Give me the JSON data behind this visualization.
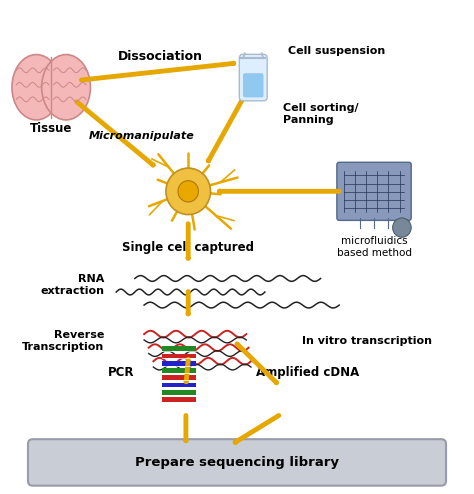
{
  "background_color": "#ffffff",
  "arrow_color": "#E6A800",
  "arrow_lw": 3.5,
  "figsize": [
    4.74,
    4.94
  ],
  "dpi": 100,
  "labels": {
    "tissue": "Tissue",
    "dissociation": "Dissociation",
    "cell_suspension": "Cell suspension",
    "cell_sorting": "Cell sorting/\nPanning",
    "micromanipulate": "Micromanipulate",
    "single_cell": "Single cell captured",
    "microfluidics": "microfluidics\nbased method",
    "rna_extraction": "RNA\nextraction",
    "reverse_transcription": "Reverse\nTranscription",
    "pcr": "PCR",
    "in_vitro": "In vitro transcription",
    "amplified_cdna": "Amplified cDNA",
    "prepare_library": "Prepare sequencing library"
  },
  "box_color": "#c8cdd6",
  "box_edge_color": "#999aaa",
  "neuron_color": "#E6A800",
  "brain_color": "#f5b8b8",
  "brain_edge": "#cc8888"
}
